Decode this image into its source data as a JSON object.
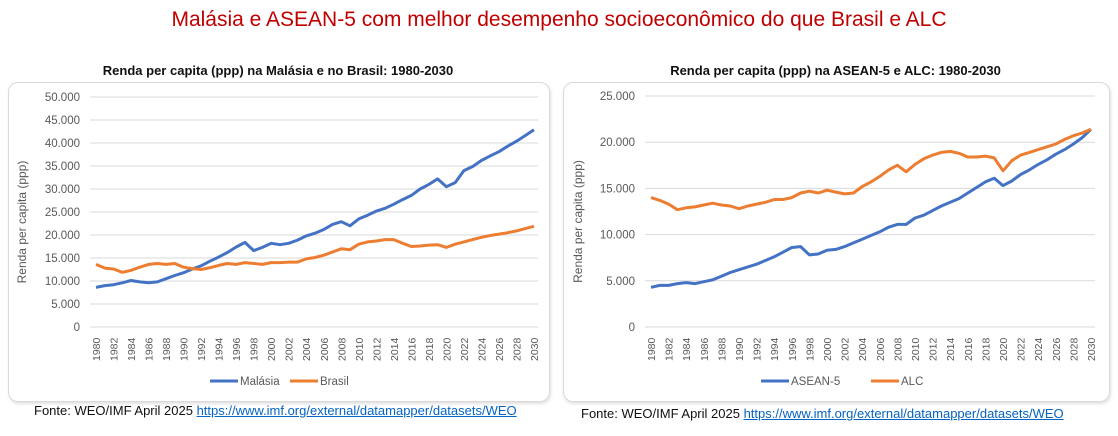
{
  "title": "Malásia e ASEAN-5 com melhor desempenho socioeconômico do que Brasil e ALC",
  "colors": {
    "blue": "#4472c4",
    "orange": "#ed7d31",
    "title_red": "#c00000",
    "grid": "#d9d9d9"
  },
  "chart_data": [
    {
      "type": "line",
      "title": "Renda per capita (ppp) na Malásia e no Brasil: 1980-2030",
      "xlabel": "",
      "ylabel": "Renda per capita (ppp)",
      "ylim": [
        0,
        50000
      ],
      "yticks": [
        "0",
        "5.000",
        "10.000",
        "15.000",
        "20.000",
        "25.000",
        "30.000",
        "35.000",
        "40.000",
        "45.000",
        "50.000"
      ],
      "xlim": [
        1980,
        2030
      ],
      "x_tick_step": 2,
      "grid": true,
      "legend": "bottom",
      "series": [
        {
          "name": "Malásia",
          "color": "#4472c4",
          "values": [
            8600,
            9000,
            9200,
            9600,
            10100,
            9800,
            9600,
            9800,
            10500,
            11200,
            11800,
            12600,
            13300,
            14300,
            15200,
            16200,
            17400,
            18400,
            16600,
            17300,
            18200,
            17900,
            18200,
            18900,
            19800,
            20400,
            21200,
            22300,
            22900,
            22000,
            23500,
            24300,
            25200,
            25800,
            26700,
            27700,
            28600,
            30000,
            31000,
            32200,
            30500,
            31400,
            34000,
            34900,
            36200,
            37200,
            38100,
            39300,
            40400,
            41600,
            42900
          ]
        },
        {
          "name": "Brasil",
          "color": "#ed7d31",
          "values": [
            13600,
            12800,
            12600,
            11900,
            12300,
            13000,
            13600,
            13800,
            13600,
            13800,
            13000,
            12700,
            12500,
            12900,
            13400,
            13800,
            13600,
            14000,
            13800,
            13600,
            14000,
            14000,
            14100,
            14100,
            14800,
            15100,
            15600,
            16300,
            17000,
            16800,
            18000,
            18500,
            18700,
            19000,
            19000,
            18200,
            17500,
            17600,
            17800,
            17900,
            17300,
            18000,
            18500,
            19000,
            19500,
            19900,
            20200,
            20500,
            20900,
            21400,
            21900
          ]
        }
      ],
      "source_prefix": "Fonte: WEO/IMF April 2025 ",
      "source_link": "https://www.imf.org/external/datamapper/datasets/WEO"
    },
    {
      "type": "line",
      "title": "Renda per capita (ppp) na ASEAN-5 e ALC: 1980-2030",
      "xlabel": "",
      "ylabel": "Renda per capita (ppp)",
      "ylim": [
        0,
        25000
      ],
      "yticks": [
        "0",
        "5.000",
        "10.000",
        "15.000",
        "20.000",
        "25.000"
      ],
      "xlim": [
        1980,
        2030
      ],
      "x_tick_step": 2,
      "grid": true,
      "legend": "bottom",
      "series": [
        {
          "name": "ASEAN-5",
          "color": "#4472c4",
          "values": [
            4300,
            4500,
            4500,
            4700,
            4800,
            4700,
            4900,
            5100,
            5500,
            5900,
            6200,
            6500,
            6800,
            7200,
            7600,
            8100,
            8600,
            8700,
            7800,
            7900,
            8300,
            8400,
            8700,
            9100,
            9500,
            9900,
            10300,
            10800,
            11100,
            11100,
            11800,
            12100,
            12600,
            13100,
            13500,
            13900,
            14500,
            15100,
            15700,
            16100,
            15300,
            15800,
            16500,
            17000,
            17600,
            18100,
            18700,
            19200,
            19800,
            20500,
            21400
          ]
        },
        {
          "name": "ALC",
          "color": "#ed7d31",
          "values": [
            14000,
            13700,
            13300,
            12700,
            12900,
            13000,
            13200,
            13400,
            13200,
            13100,
            12800,
            13100,
            13300,
            13500,
            13800,
            13800,
            14000,
            14500,
            14700,
            14500,
            14800,
            14600,
            14400,
            14500,
            15200,
            15700,
            16300,
            17000,
            17500,
            16800,
            17600,
            18200,
            18600,
            18900,
            19000,
            18800,
            18400,
            18400,
            18500,
            18300,
            16900,
            18000,
            18600,
            18900,
            19200,
            19500,
            19800,
            20300,
            20700,
            21000,
            21400
          ]
        }
      ],
      "source_prefix": "Fonte: WEO/IMF April 2025 ",
      "source_link": "https://www.imf.org/external/datamapper/datasets/WEO"
    }
  ]
}
